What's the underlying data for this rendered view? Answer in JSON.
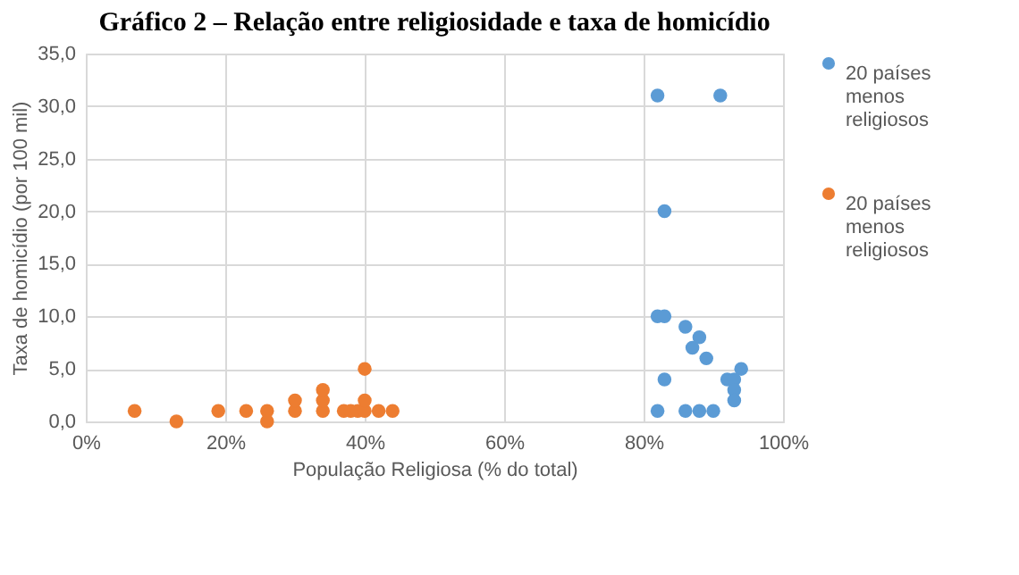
{
  "chart_data": {
    "type": "scatter",
    "title": "Gráfico 2 – Relação entre religiosidade e taxa de homicídio",
    "xlabel": "População Religiosa (% do total)",
    "ylabel": "Taxa de homicídio (por 100 mil)",
    "xlim": [
      0,
      100
    ],
    "xticks": [
      {
        "value": 0,
        "label": "0%"
      },
      {
        "value": 20,
        "label": "20%"
      },
      {
        "value": 40,
        "label": "40%"
      },
      {
        "value": 60,
        "label": "60%"
      },
      {
        "value": 80,
        "label": "80%"
      },
      {
        "value": 100,
        "label": "100%"
      }
    ],
    "ylim": [
      0,
      35
    ],
    "yticks": [
      {
        "value": 0,
        "label": "0,0"
      },
      {
        "value": 5,
        "label": "5,0"
      },
      {
        "value": 10,
        "label": "10,0"
      },
      {
        "value": 15,
        "label": "15,0"
      },
      {
        "value": 20,
        "label": "20,0"
      },
      {
        "value": 25,
        "label": "25,0"
      },
      {
        "value": 30,
        "label": "30,0"
      },
      {
        "value": 35,
        "label": "35,0"
      }
    ],
    "grid": true,
    "legend": "right",
    "marker": "circle",
    "series": [
      {
        "name": "20 países menos religiosos",
        "color": "#5b9bd5",
        "x": [
          82,
          91,
          83,
          82,
          83,
          86,
          88,
          87,
          89,
          94,
          92,
          93,
          93,
          93,
          83,
          82,
          86,
          88,
          90
        ],
        "values": [
          31,
          31,
          20,
          10,
          10,
          9,
          8,
          7,
          6,
          5,
          4,
          4,
          3,
          2,
          4,
          1,
          1,
          1,
          1
        ]
      },
      {
        "name": "20 países menos religiosos",
        "color": "#ed7d31",
        "x": [
          7,
          13,
          19,
          23,
          26,
          26,
          30,
          30,
          34,
          34,
          34,
          37,
          38,
          39,
          40,
          40,
          40,
          42,
          44
        ],
        "values": [
          1,
          0,
          1,
          1,
          1,
          0,
          1,
          2,
          1,
          2,
          3,
          1,
          1,
          1,
          1,
          2,
          5,
          1,
          1
        ]
      }
    ]
  }
}
